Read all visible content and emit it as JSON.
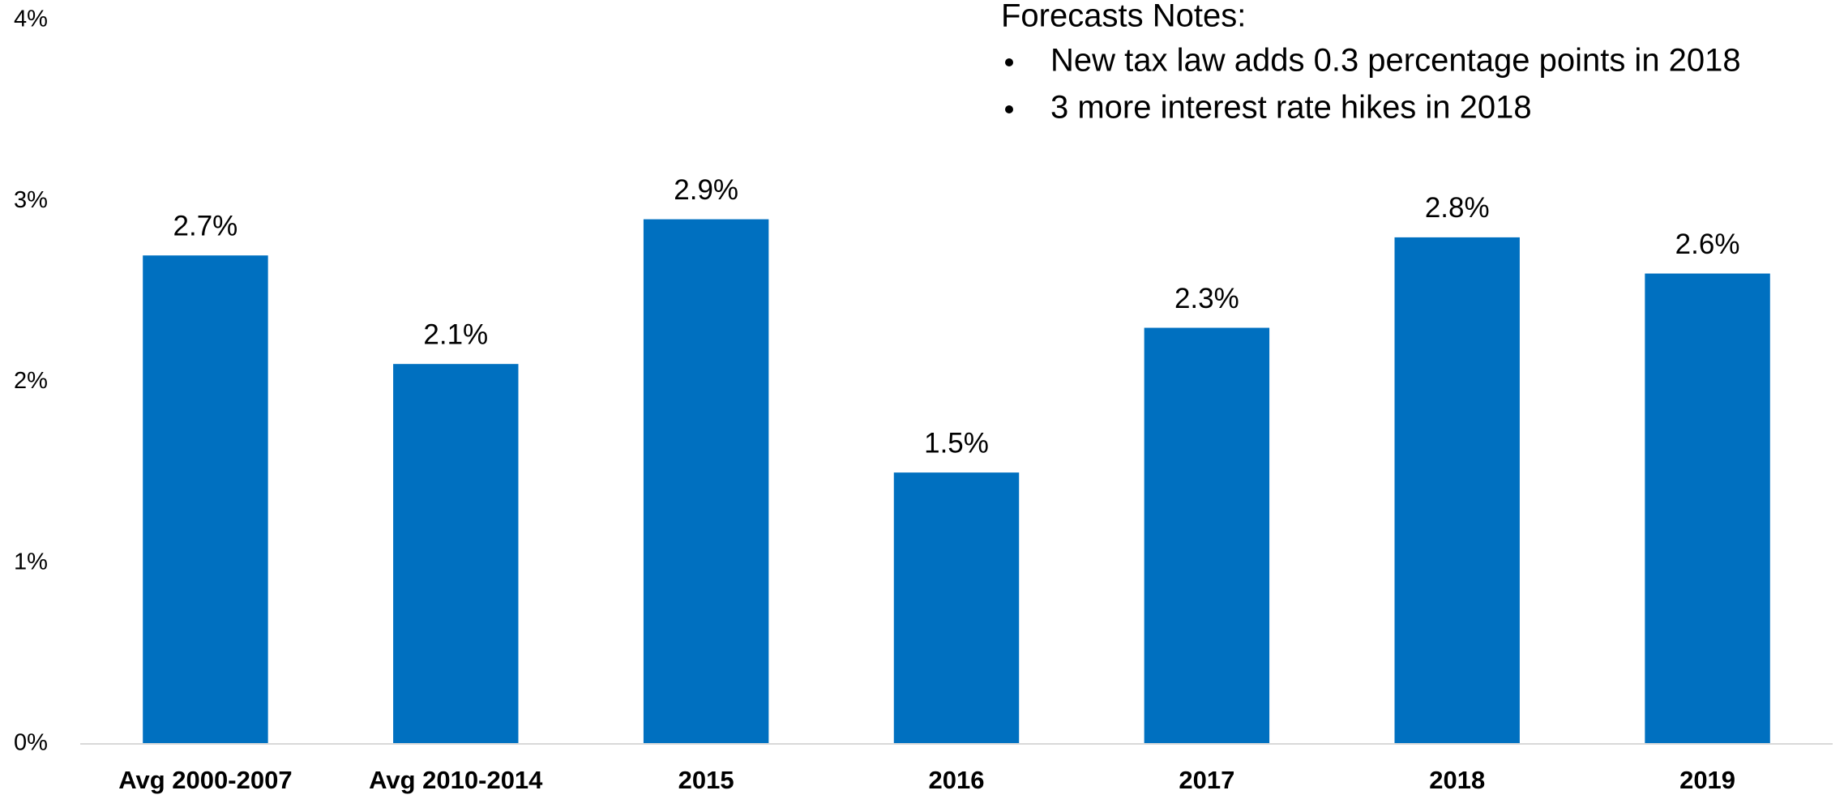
{
  "chart_data": {
    "type": "bar",
    "categories": [
      "Avg 2000-2007",
      "Avg 2010-2014",
      "2015",
      "2016",
      "2017",
      "2018",
      "2019"
    ],
    "values": [
      2.7,
      2.1,
      2.9,
      1.5,
      2.3,
      2.8,
      2.6
    ],
    "value_labels": [
      "2.7%",
      "2.1%",
      "2.9%",
      "1.5%",
      "2.3%",
      "2.8%",
      "2.6%"
    ],
    "color": "#0070c0",
    "ylim": [
      0,
      4
    ],
    "yticks": [
      {
        "value": 0,
        "label": "0%"
      },
      {
        "value": 1,
        "label": "1%"
      },
      {
        "value": 2,
        "label": "2%"
      },
      {
        "value": 3,
        "label": "3%"
      },
      {
        "value": 4,
        "label": "4%"
      }
    ],
    "grid": false,
    "annotation": {
      "title": "Forecasts Notes:",
      "notes": [
        "New tax law adds 0.3 percentage points in 2018",
        "3 more interest rate hikes in 2018"
      ]
    }
  }
}
